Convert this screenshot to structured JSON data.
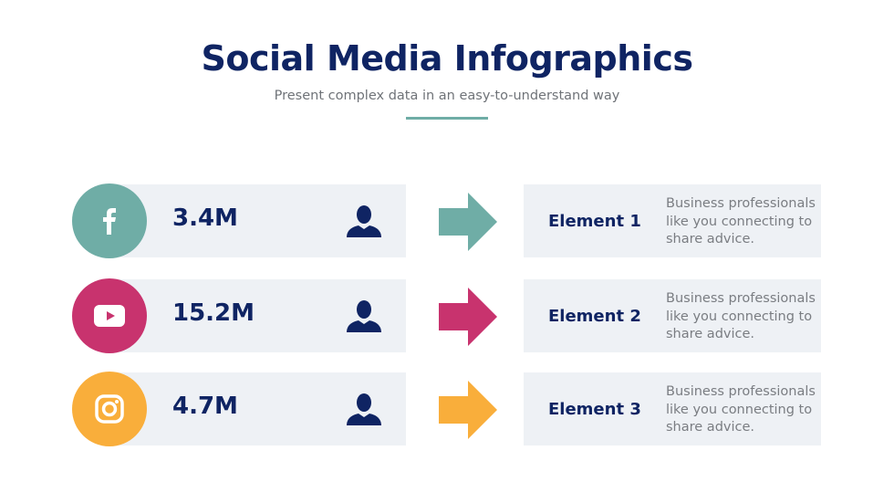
{
  "header": {
    "title": "Social Media Infographics",
    "subtitle": "Present complex data in an easy-to-understand way"
  },
  "rows": [
    {
      "platform_icon": "facebook-icon",
      "color": "#6fada6",
      "value": "3.4M",
      "element": "Element 1",
      "description": "Business professionals like you connecting to share advice."
    },
    {
      "platform_icon": "youtube-icon",
      "color": "#c8336e",
      "value": "15.2M",
      "element": "Element 2",
      "description": "Business professionals like you connecting to share advice."
    },
    {
      "platform_icon": "instagram-icon",
      "color": "#f9ae3b",
      "value": "4.7M",
      "element": "Element 3",
      "description": "Business professionals like you connecting to share advice."
    }
  ],
  "colors": {
    "navy": "#0f2463",
    "panel": "#eef1f5"
  }
}
